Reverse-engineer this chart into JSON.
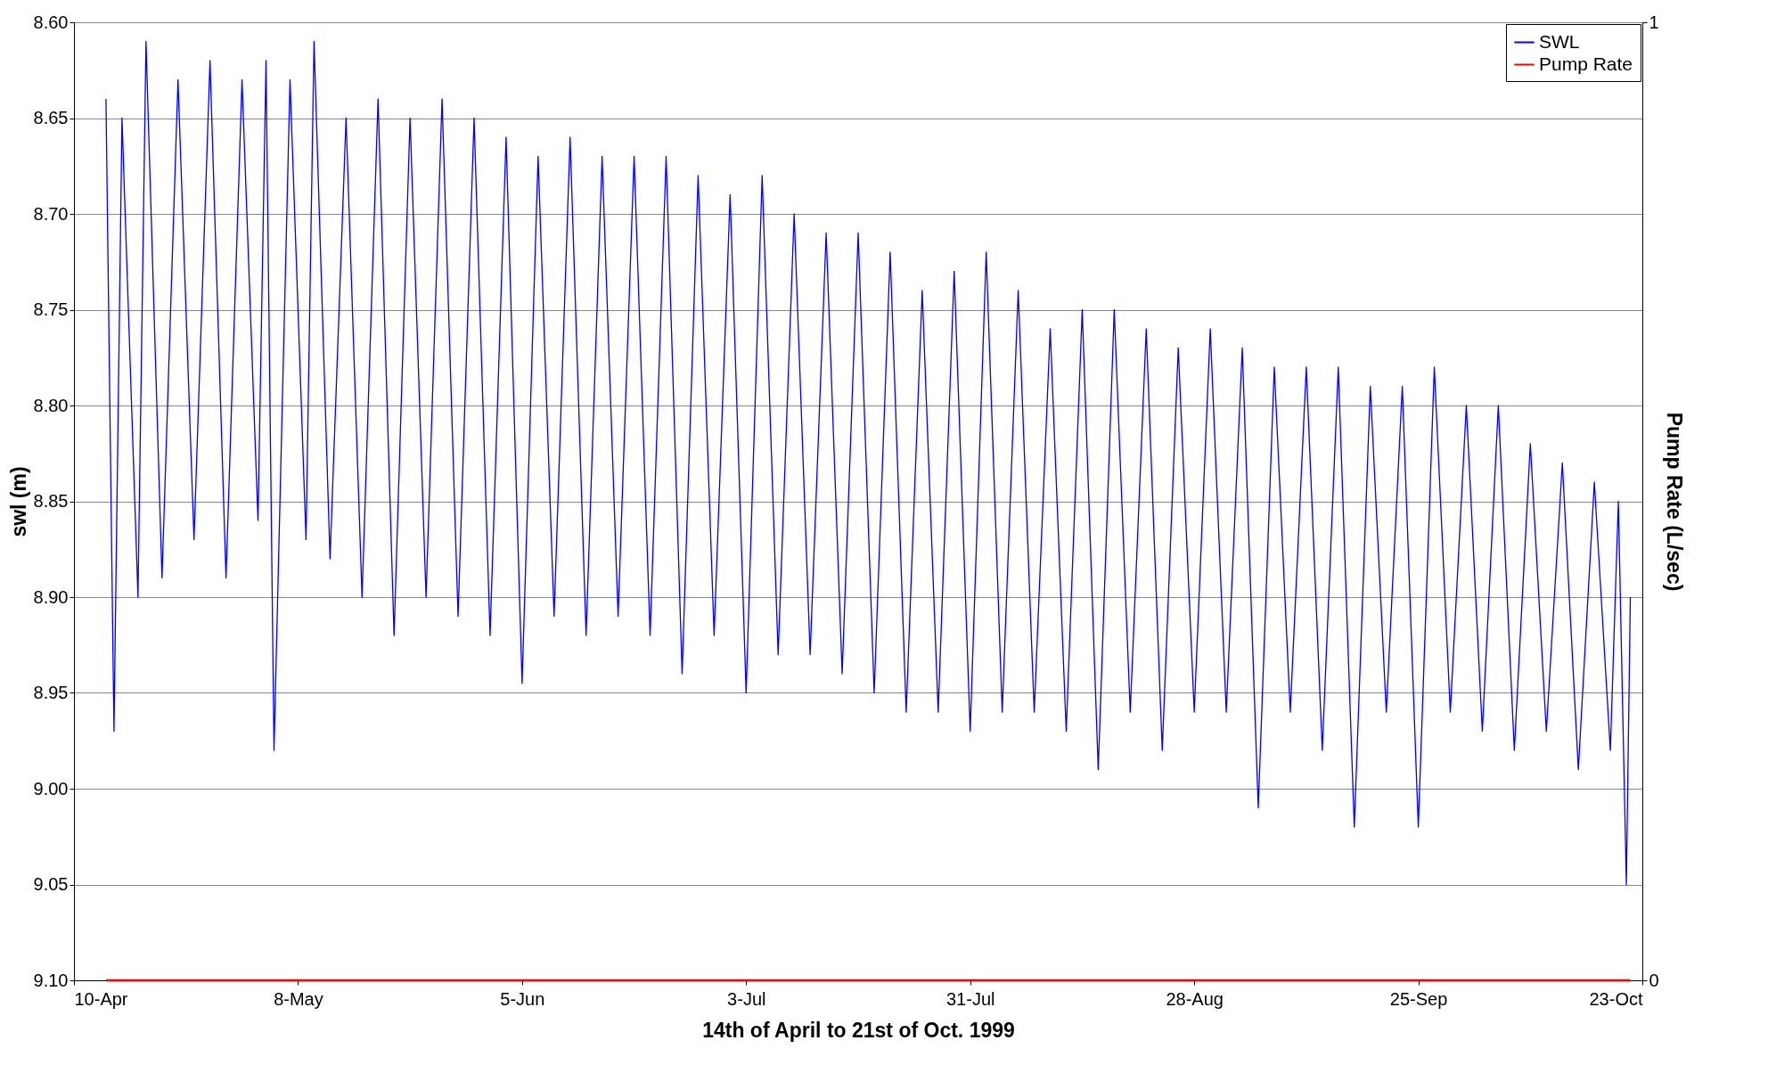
{
  "chart_data": {
    "type": "line",
    "xlabel": "14th of April to 21st of Oct. 1999",
    "ylabel": "swl (m)",
    "y2label": "Pump Rate (L/sec)",
    "xlim": [
      "1999-04-10",
      "1999-10-23"
    ],
    "xticks": [
      {
        "value": "1999-04-10",
        "label": "10-Apr"
      },
      {
        "value": "1999-05-08",
        "label": "8-May"
      },
      {
        "value": "1999-06-05",
        "label": "5-Jun"
      },
      {
        "value": "1999-07-03",
        "label": "3-Jul"
      },
      {
        "value": "1999-07-31",
        "label": "31-Jul"
      },
      {
        "value": "1999-08-28",
        "label": "28-Aug"
      },
      {
        "value": "1999-09-25",
        "label": "25-Sep"
      },
      {
        "value": "1999-10-23",
        "label": "23-Oct"
      }
    ],
    "ylim": [
      9.1,
      8.6
    ],
    "yticks": [
      {
        "value": 8.6,
        "label": "8.60"
      },
      {
        "value": 8.65,
        "label": "8.65"
      },
      {
        "value": 8.7,
        "label": "8.70"
      },
      {
        "value": 8.75,
        "label": "8.75"
      },
      {
        "value": 8.8,
        "label": "8.80"
      },
      {
        "value": 8.85,
        "label": "8.85"
      },
      {
        "value": 8.9,
        "label": "8.90"
      },
      {
        "value": 8.95,
        "label": "8.95"
      },
      {
        "value": 9.0,
        "label": "9.00"
      },
      {
        "value": 9.05,
        "label": "9.05"
      },
      {
        "value": 9.1,
        "label": "9.10"
      }
    ],
    "y2lim": [
      0,
      1
    ],
    "y2ticks": [
      0,
      1
    ],
    "grid": "y",
    "legend": "top right",
    "marker": "none",
    "line_style": "solid",
    "series": [
      {
        "name": "SWL",
        "color": "#0000ff",
        "x": [
          "1999-04-14",
          "1999-04-15",
          "1999-04-16",
          "1999-04-18",
          "1999-04-19",
          "1999-04-21",
          "1999-04-23",
          "1999-04-25",
          "1999-04-27",
          "1999-04-29",
          "1999-05-01",
          "1999-05-03",
          "1999-05-04",
          "1999-05-05",
          "1999-05-07",
          "1999-05-09",
          "1999-05-10",
          "1999-05-12",
          "1999-05-14",
          "1999-05-16",
          "1999-05-18",
          "1999-05-20",
          "1999-05-22",
          "1999-05-24",
          "1999-05-26",
          "1999-05-28",
          "1999-05-30",
          "1999-06-01",
          "1999-06-03",
          "1999-06-05",
          "1999-06-07",
          "1999-06-09",
          "1999-06-11",
          "1999-06-13",
          "1999-06-15",
          "1999-06-17",
          "1999-06-19",
          "1999-06-21",
          "1999-06-23",
          "1999-06-25",
          "1999-06-27",
          "1999-06-29",
          "1999-07-01",
          "1999-07-03",
          "1999-07-05",
          "1999-07-07",
          "1999-07-09",
          "1999-07-11",
          "1999-07-13",
          "1999-07-15",
          "1999-07-17",
          "1999-07-19",
          "1999-07-21",
          "1999-07-23",
          "1999-07-25",
          "1999-07-27",
          "1999-07-29",
          "1999-07-31",
          "1999-08-02",
          "1999-08-04",
          "1999-08-06",
          "1999-08-08",
          "1999-08-10",
          "1999-08-12",
          "1999-08-14",
          "1999-08-16",
          "1999-08-18",
          "1999-08-20",
          "1999-08-22",
          "1999-08-24",
          "1999-08-26",
          "1999-08-28",
          "1999-08-30",
          "1999-09-01",
          "1999-09-03",
          "1999-09-05",
          "1999-09-07",
          "1999-09-09",
          "1999-09-11",
          "1999-09-13",
          "1999-09-15",
          "1999-09-17",
          "1999-09-19",
          "1999-09-21",
          "1999-09-23",
          "1999-09-25",
          "1999-09-27",
          "1999-09-29",
          "1999-10-01",
          "1999-10-03",
          "1999-10-05",
          "1999-10-07",
          "1999-10-09",
          "1999-10-11",
          "1999-10-13",
          "1999-10-15",
          "1999-10-17",
          "1999-10-19",
          "1999-10-20",
          "1999-10-21",
          "1999-10-21T12:00"
        ],
        "values": [
          8.64,
          8.97,
          8.65,
          8.9,
          8.61,
          8.89,
          8.63,
          8.87,
          8.62,
          8.89,
          8.63,
          8.86,
          8.62,
          8.98,
          8.63,
          8.87,
          8.61,
          8.88,
          8.65,
          8.9,
          8.64,
          8.92,
          8.65,
          8.9,
          8.64,
          8.91,
          8.65,
          8.92,
          8.66,
          8.945,
          8.67,
          8.91,
          8.66,
          8.92,
          8.67,
          8.91,
          8.67,
          8.92,
          8.67,
          8.94,
          8.68,
          8.92,
          8.69,
          8.95,
          8.68,
          8.93,
          8.7,
          8.93,
          8.71,
          8.94,
          8.71,
          8.95,
          8.72,
          8.96,
          8.74,
          8.96,
          8.73,
          8.97,
          8.72,
          8.96,
          8.74,
          8.96,
          8.76,
          8.97,
          8.75,
          8.99,
          8.75,
          8.96,
          8.76,
          8.98,
          8.77,
          8.96,
          8.76,
          8.96,
          8.77,
          9.01,
          8.78,
          8.96,
          8.78,
          8.98,
          8.78,
          9.02,
          8.79,
          8.96,
          8.79,
          9.02,
          8.78,
          8.96,
          8.8,
          8.97,
          8.8,
          8.98,
          8.82,
          8.97,
          8.83,
          8.99,
          8.84,
          8.98,
          8.85,
          9.05,
          8.9
        ]
      },
      {
        "name": "Pump Rate",
        "color": "#ff0000",
        "axis": "y2",
        "x": [
          "1999-04-14",
          "1999-10-21T12:00"
        ],
        "values": [
          0,
          0
        ]
      }
    ]
  }
}
